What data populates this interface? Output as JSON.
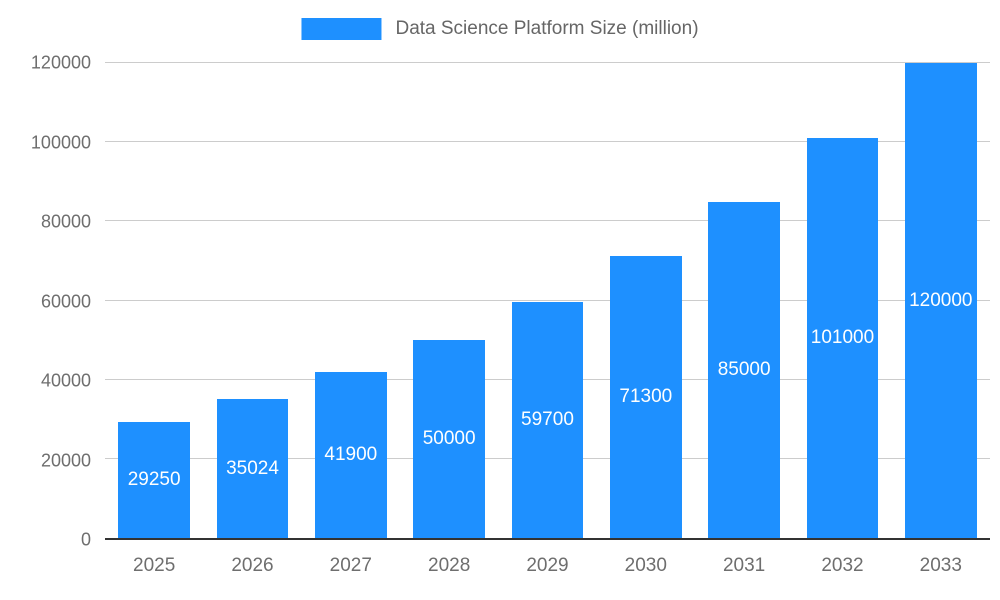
{
  "chart_data": {
    "type": "bar",
    "title": "Data Science Platform Size (million)",
    "categories": [
      "2025",
      "2026",
      "2027",
      "2028",
      "2029",
      "2030",
      "2031",
      "2032",
      "2033"
    ],
    "values": [
      29250,
      35024,
      41900,
      50000,
      59700,
      71300,
      85000,
      101000,
      120000
    ],
    "bar_labels": [
      "29250",
      "35024",
      "41900",
      "50000",
      "59700",
      "71300",
      "85000",
      "101000",
      "120000"
    ],
    "xlabel": "",
    "ylabel": "",
    "ylim": [
      0,
      120000
    ],
    "yticks": [
      0,
      20000,
      40000,
      60000,
      80000,
      100000,
      120000
    ],
    "grid": true,
    "legend_position": "top-center",
    "colors": {
      "bar": "#1e90ff",
      "grid": "#cccccc",
      "baseline": "#333333",
      "axis_text": "#6e6e6e",
      "legend_text": "#666666",
      "bar_label_text": "#ffffff",
      "background": "#ffffff"
    }
  }
}
